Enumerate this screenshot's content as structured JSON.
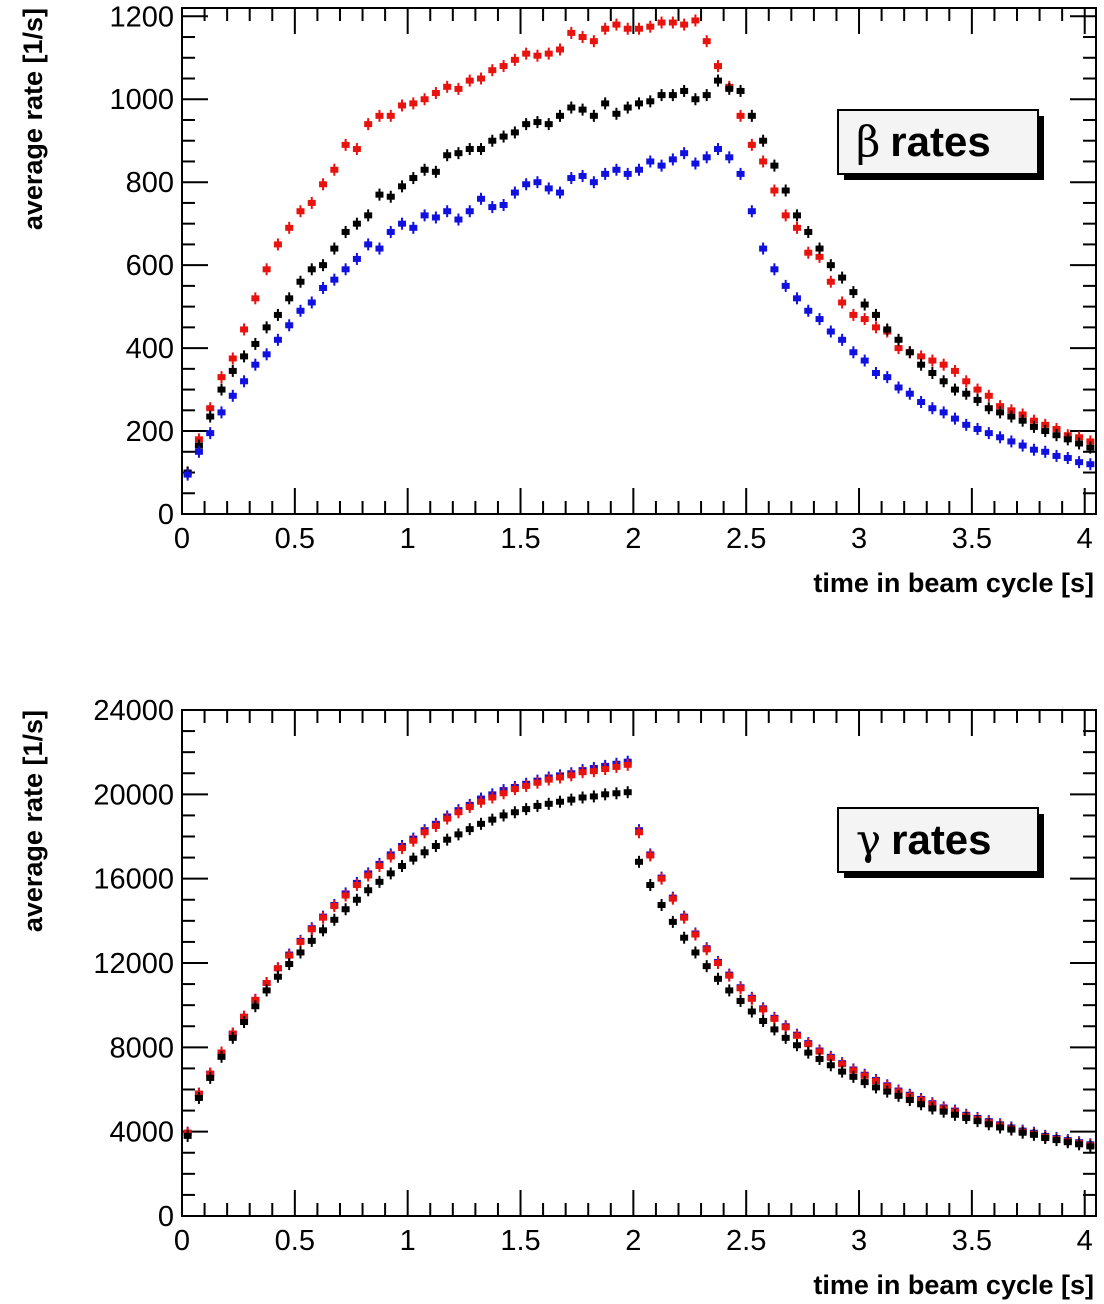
{
  "chart_data": [
    {
      "type": "scatter",
      "id": "beta",
      "legend_symbol": "β",
      "legend_label": "rates",
      "legend_position": "top-right",
      "xlabel": "time in beam cycle [s]",
      "ylabel": "average rate [1/s]",
      "xlim": [
        0,
        4.05
      ],
      "ylim": [
        0,
        1220
      ],
      "xticks": [
        0,
        0.5,
        1,
        1.5,
        2,
        2.5,
        3,
        3.5,
        4
      ],
      "xtick_labels": [
        "0",
        "0.5",
        "1",
        "1.5",
        "2",
        "2.5",
        "3",
        "3.5",
        "4"
      ],
      "yticks": [
        0,
        200,
        400,
        600,
        800,
        1000,
        1200
      ],
      "ytick_labels": [
        "0",
        "200",
        "400",
        "600",
        "800",
        "1000",
        "1200"
      ],
      "grid": false,
      "x": [
        0.025,
        0.075,
        0.125,
        0.175,
        0.225,
        0.275,
        0.325,
        0.375,
        0.425,
        0.475,
        0.525,
        0.575,
        0.625,
        0.675,
        0.725,
        0.775,
        0.825,
        0.875,
        0.925,
        0.975,
        1.025,
        1.075,
        1.125,
        1.175,
        1.225,
        1.275,
        1.325,
        1.375,
        1.425,
        1.475,
        1.525,
        1.575,
        1.625,
        1.675,
        1.725,
        1.775,
        1.825,
        1.875,
        1.925,
        1.975,
        2.025,
        2.075,
        2.125,
        2.175,
        2.225,
        2.275,
        2.325,
        2.375,
        2.425,
        2.475,
        2.525,
        2.575,
        2.625,
        2.675,
        2.725,
        2.775,
        2.825,
        2.875,
        2.925,
        2.975,
        3.025,
        3.075,
        3.125,
        3.175,
        3.225,
        3.275,
        3.325,
        3.375,
        3.425,
        3.475,
        3.525,
        3.575,
        3.625,
        3.675,
        3.725,
        3.775,
        3.825,
        3.875,
        3.925,
        3.975,
        4.025
      ],
      "series": [
        {
          "color": "#e8120e",
          "values": [
            100,
            180,
            255,
            330,
            375,
            445,
            520,
            590,
            650,
            690,
            730,
            750,
            795,
            830,
            890,
            880,
            940,
            960,
            960,
            985,
            990,
            1000,
            1015,
            1030,
            1025,
            1045,
            1050,
            1070,
            1080,
            1095,
            1110,
            1105,
            1110,
            1120,
            1160,
            1150,
            1140,
            1170,
            1180,
            1170,
            1170,
            1175,
            1185,
            1185,
            1180,
            1190,
            1140,
            1080,
            1030,
            960,
            890,
            850,
            780,
            720,
            690,
            630,
            620,
            560,
            510,
            480,
            470,
            450,
            440,
            400,
            390,
            380,
            370,
            360,
            345,
            320,
            300,
            285,
            260,
            250,
            240,
            225,
            215,
            205,
            190,
            185,
            175
          ]
        },
        {
          "color": "#000000",
          "values": [
            100,
            165,
            235,
            300,
            345,
            380,
            410,
            450,
            480,
            520,
            560,
            590,
            600,
            640,
            680,
            700,
            720,
            770,
            765,
            790,
            810,
            830,
            825,
            865,
            870,
            880,
            880,
            900,
            910,
            920,
            940,
            945,
            940,
            960,
            980,
            975,
            960,
            990,
            965,
            980,
            990,
            995,
            1010,
            1010,
            1020,
            1000,
            1010,
            1045,
            1025,
            1020,
            960,
            900,
            840,
            780,
            720,
            680,
            640,
            600,
            570,
            535,
            505,
            480,
            445,
            420,
            390,
            360,
            340,
            320,
            300,
            290,
            275,
            255,
            245,
            235,
            225,
            210,
            200,
            190,
            180,
            170,
            160
          ]
        },
        {
          "color": "#1010e0",
          "values": [
            95,
            150,
            195,
            245,
            285,
            320,
            360,
            385,
            420,
            455,
            490,
            510,
            545,
            565,
            590,
            615,
            650,
            640,
            680,
            700,
            690,
            720,
            715,
            730,
            710,
            730,
            760,
            740,
            745,
            775,
            795,
            800,
            785,
            775,
            810,
            815,
            800,
            820,
            830,
            820,
            830,
            850,
            840,
            855,
            870,
            845,
            860,
            880,
            860,
            820,
            730,
            640,
            590,
            550,
            520,
            490,
            470,
            440,
            420,
            390,
            370,
            340,
            330,
            305,
            290,
            270,
            255,
            245,
            230,
            215,
            205,
            195,
            185,
            175,
            165,
            155,
            150,
            140,
            135,
            125,
            120
          ]
        }
      ]
    },
    {
      "type": "scatter",
      "id": "gamma",
      "legend_symbol": "γ",
      "legend_label": "rates",
      "legend_position": "right",
      "xlabel": "time in beam cycle [s]",
      "ylabel": "average rate [1/s]",
      "xlim": [
        0,
        4.05
      ],
      "ylim": [
        0,
        24000
      ],
      "xticks": [
        0,
        0.5,
        1,
        1.5,
        2,
        2.5,
        3,
        3.5,
        4
      ],
      "xtick_labels": [
        "0",
        "0.5",
        "1",
        "1.5",
        "2",
        "2.5",
        "3",
        "3.5",
        "4"
      ],
      "yticks": [
        0,
        4000,
        8000,
        12000,
        16000,
        20000,
        24000
      ],
      "ytick_labels": [
        "0",
        "4000",
        "8000",
        "12000",
        "16000",
        "20000",
        "24000"
      ],
      "grid": false,
      "x": [
        0.025,
        0.075,
        0.125,
        0.175,
        0.225,
        0.275,
        0.325,
        0.375,
        0.425,
        0.475,
        0.525,
        0.575,
        0.625,
        0.675,
        0.725,
        0.775,
        0.825,
        0.875,
        0.925,
        0.975,
        1.025,
        1.075,
        1.125,
        1.175,
        1.225,
        1.275,
        1.325,
        1.375,
        1.425,
        1.475,
        1.525,
        1.575,
        1.625,
        1.675,
        1.725,
        1.775,
        1.825,
        1.875,
        1.925,
        1.975,
        2.025,
        2.075,
        2.125,
        2.175,
        2.225,
        2.275,
        2.325,
        2.375,
        2.425,
        2.475,
        2.525,
        2.575,
        2.625,
        2.675,
        2.725,
        2.775,
        2.825,
        2.875,
        2.925,
        2.975,
        3.025,
        3.075,
        3.125,
        3.175,
        3.225,
        3.275,
        3.325,
        3.375,
        3.425,
        3.475,
        3.525,
        3.575,
        3.625,
        3.675,
        3.725,
        3.775,
        3.825,
        3.875,
        3.925,
        3.975,
        4.025
      ],
      "series": [
        {
          "color": "#1010e0",
          "values": [
            3950,
            5800,
            6750,
            7750,
            8650,
            9450,
            10250,
            11050,
            11750,
            12400,
            13050,
            13650,
            14200,
            14750,
            15300,
            15800,
            16250,
            16700,
            17150,
            17550,
            17900,
            18300,
            18600,
            18950,
            19250,
            19500,
            19800,
            20000,
            20200,
            20350,
            20500,
            20650,
            20800,
            20900,
            21000,
            21150,
            21250,
            21350,
            21450,
            21550,
            18300,
            17150,
            16050,
            15100,
            14200,
            13400,
            12700,
            12050,
            11450,
            10850,
            10350,
            9850,
            9400,
            9000,
            8600,
            8200,
            7850,
            7550,
            7250,
            6950,
            6700,
            6450,
            6200,
            5950,
            5750,
            5550,
            5350,
            5150,
            5000,
            4800,
            4650,
            4500,
            4350,
            4200,
            4050,
            3950,
            3800,
            3700,
            3600,
            3500,
            3400
          ]
        },
        {
          "color": "#e8120e",
          "values": [
            3950,
            5800,
            6750,
            7750,
            8650,
            9450,
            10250,
            11050,
            11750,
            12350,
            13000,
            13600,
            14150,
            14700,
            15200,
            15700,
            16150,
            16600,
            17050,
            17450,
            17800,
            18200,
            18500,
            18850,
            19150,
            19400,
            19650,
            19850,
            20050,
            20250,
            20400,
            20550,
            20700,
            20800,
            20900,
            21050,
            21100,
            21200,
            21300,
            21400,
            18200,
            17100,
            16000,
            15050,
            14150,
            13350,
            12650,
            12000,
            11400,
            10800,
            10300,
            9800,
            9350,
            8950,
            8550,
            8150,
            7800,
            7500,
            7200,
            6900,
            6650,
            6400,
            6150,
            5900,
            5700,
            5500,
            5300,
            5100,
            4950,
            4750,
            4600,
            4450,
            4300,
            4150,
            4000,
            3900,
            3750,
            3650,
            3550,
            3450,
            3350
          ]
        },
        {
          "color": "#000000",
          "values": [
            3800,
            5600,
            6550,
            7550,
            8450,
            9200,
            9950,
            10700,
            11350,
            11950,
            12500,
            13050,
            13550,
            14050,
            14550,
            15000,
            15450,
            15850,
            16250,
            16600,
            16950,
            17250,
            17550,
            17850,
            18100,
            18350,
            18600,
            18800,
            19000,
            19150,
            19300,
            19450,
            19550,
            19650,
            19750,
            19850,
            19900,
            20000,
            20050,
            20100,
            16800,
            15700,
            14750,
            13950,
            13200,
            12500,
            11850,
            11250,
            10700,
            10200,
            9700,
            9250,
            8850,
            8450,
            8100,
            7750,
            7450,
            7150,
            6850,
            6600,
            6350,
            6100,
            5900,
            5700,
            5500,
            5300,
            5100,
            4950,
            4800,
            4650,
            4500,
            4350,
            4200,
            4100,
            3950,
            3850,
            3700,
            3600,
            3500,
            3400,
            3300
          ]
        }
      ]
    }
  ]
}
